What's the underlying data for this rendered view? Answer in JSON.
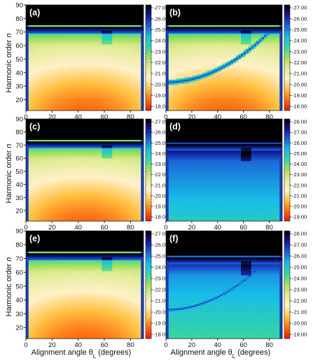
{
  "chart_data": {
    "type": "heatmap",
    "layout": "3x2 grid of heatmaps with colorbars",
    "colormap": [
      "#dc1a10",
      "#ff6a10",
      "#ffc040",
      "#fff1c8",
      "#e4ec9a",
      "#a6e05a",
      "#38d6a0",
      "#18bde8",
      "#1c62d6",
      "#121a92",
      "#000000"
    ],
    "xlabel_left": "Alignment angle θ",
    "xlabel_right": "Alignment angle θ",
    "xlabel_sub": "L",
    "xlabel_suffix": " (degrees)",
    "ylabel_prefix": "Harmonic order ",
    "ylabel_italic": "n",
    "xticks": [
      "0",
      "20",
      "40",
      "60",
      "80"
    ],
    "xlim": [
      0,
      90
    ],
    "yticks_left": [
      "10",
      "20",
      "30",
      "40",
      "50",
      "60",
      "70",
      "80",
      "90"
    ],
    "ylim": [
      12,
      90
    ],
    "panels": [
      {
        "label": "(a)",
        "colorbar_ticks": [
          "-27.00",
          "-26.00",
          "-25.00",
          "-24.00",
          "-23.00",
          "-22.00",
          "-21.00",
          "-20.00",
          "-19.00",
          "-18.00"
        ],
        "colorbar_range": [
          -27.0,
          -18.0
        ],
        "cutoff_harmonic": 73,
        "curved_minimum": false
      },
      {
        "label": "(b)",
        "colorbar_ticks": [
          "-27.00",
          "-26.00",
          "-25.00",
          "-24.00",
          "-23.00",
          "-22.00",
          "-21.00",
          "-20.00",
          "-19.00",
          "-18.00"
        ],
        "colorbar_range": [
          -27.0,
          -18.0
        ],
        "cutoff_harmonic": 73,
        "curved_minimum": true
      },
      {
        "label": "(c)",
        "colorbar_ticks": [
          "-27.00",
          "-26.00",
          "-25.00",
          "-24.00",
          "-23.00",
          "-22.00",
          "-21.00",
          "-20.00",
          "-19.00",
          "-18.00"
        ],
        "colorbar_range": [
          -27.0,
          -18.0
        ],
        "cutoff_harmonic": 72,
        "curved_minimum": false
      },
      {
        "label": "(d)",
        "colorbar_ticks": [
          "-28.00",
          "-27.00",
          "-26.00",
          "-25.00",
          "-24.00",
          "-23.00",
          "-22.00",
          "-21.00",
          "-20.00",
          "-19.00"
        ],
        "colorbar_range": [
          -28.0,
          -19.0
        ],
        "cutoff_harmonic": 70,
        "curved_minimum": false
      },
      {
        "label": "(e)",
        "colorbar_ticks": [
          "-27.00",
          "-26.00",
          "-25.00",
          "-24.00",
          "-23.00",
          "-22.00",
          "-21.00",
          "-20.00",
          "-19.00",
          "-18.00"
        ],
        "colorbar_range": [
          -27.0,
          -18.0
        ],
        "cutoff_harmonic": 73,
        "curved_minimum": false
      },
      {
        "label": "(f)",
        "colorbar_ticks": [
          "-28.00",
          "-27.00",
          "-26.00",
          "-25.00",
          "-24.00",
          "-23.00",
          "-22.00",
          "-21.00",
          "-20.00",
          "-19.00"
        ],
        "colorbar_range": [
          -28.0,
          -19.0
        ],
        "cutoff_harmonic": 70,
        "curved_minimum": true
      }
    ]
  }
}
